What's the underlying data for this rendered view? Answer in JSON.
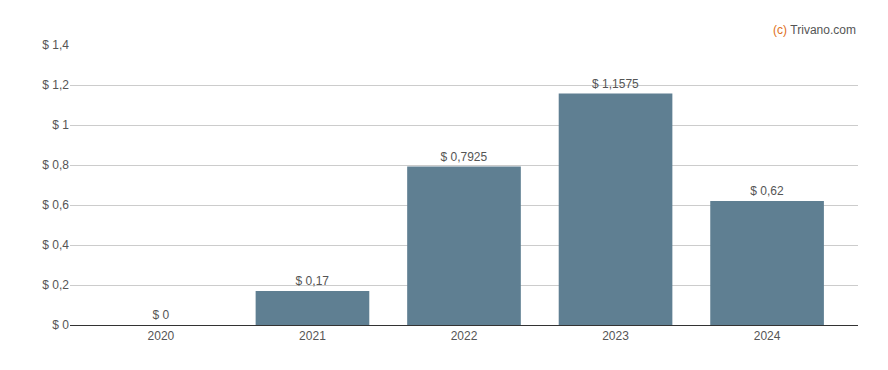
{
  "chart_data": {
    "type": "bar",
    "categories": [
      "2020",
      "2021",
      "2022",
      "2023",
      "2024"
    ],
    "values": [
      0.0,
      0.17,
      0.7925,
      1.1575,
      0.62
    ],
    "value_labels": [
      "$ 0",
      "$ 0,17",
      "$ 0,7925",
      "$ 1,1575",
      "$ 0,62"
    ],
    "data_labels": true,
    "color": "#5f7f92",
    "ylim": [
      0,
      1.4
    ],
    "yticks": [
      {
        "value": 0,
        "label": "$ 0"
      },
      {
        "value": 0.2,
        "label": "$ 0,2"
      },
      {
        "value": 0.4,
        "label": "$ 0,4"
      },
      {
        "value": 0.6,
        "label": "$ 0,6"
      },
      {
        "value": 0.8,
        "label": "$ 0,8"
      },
      {
        "value": 1.0,
        "label": "$ 1"
      },
      {
        "value": 1.2,
        "label": "$ 1,2"
      },
      {
        "value": 1.4,
        "label": "$ 1,4"
      }
    ],
    "grid": true,
    "annotations": [
      {
        "text": "(c)",
        "color": "#e07020"
      },
      {
        "text": " Trivano.com",
        "color": "#555555"
      }
    ]
  }
}
